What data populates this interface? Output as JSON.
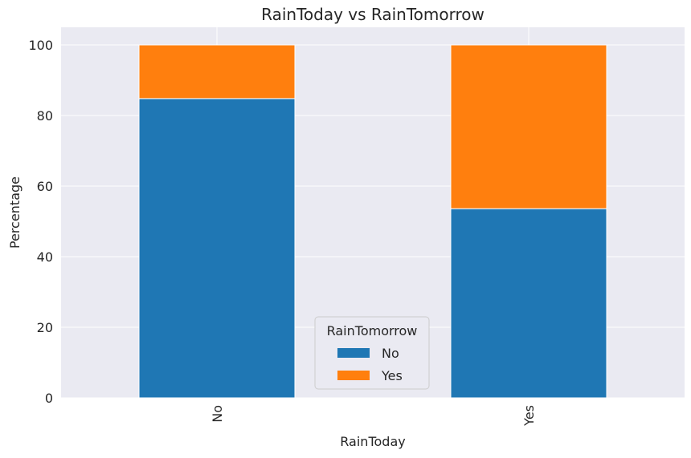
{
  "chart_data": {
    "type": "bar",
    "stacked": true,
    "title": "RainToday vs RainTomorrow",
    "xlabel": "RainToday",
    "ylabel": "Percentage",
    "categories": [
      "No",
      "Yes"
    ],
    "series": [
      {
        "name": "No",
        "values": [
          84.8,
          53.6
        ],
        "color": "#1f77b4"
      },
      {
        "name": "Yes",
        "values": [
          15.2,
          46.4
        ],
        "color": "#ff7f0e"
      }
    ],
    "ylim": [
      0,
      105
    ],
    "yticks": [
      "0",
      "20",
      "40",
      "60",
      "80",
      "100"
    ],
    "grid": true,
    "legend": {
      "title": "RainTomorrow",
      "placement": "bottom-center"
    },
    "background": "#eaeaf2"
  }
}
